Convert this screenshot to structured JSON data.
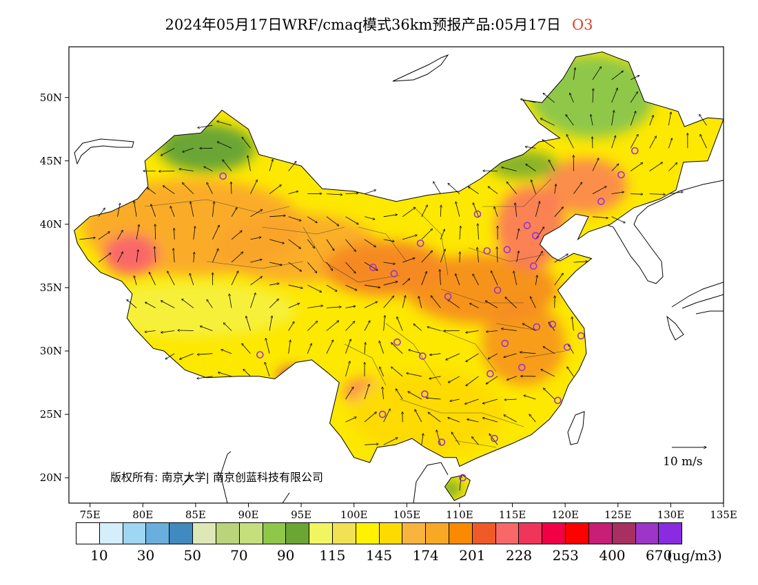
{
  "title": {
    "text": "2024年05月17日WRF/cmaq模式36km预报产品:05月17日",
    "species": "O3"
  },
  "axes": {
    "lat_labels": [
      "50N",
      "45N",
      "40N",
      "35N",
      "30N",
      "25N",
      "20N"
    ],
    "lat_values": [
      50,
      45,
      40,
      35,
      30,
      25,
      20
    ],
    "lon_labels": [
      "75E",
      "80E",
      "85E",
      "90E",
      "95E",
      "100E",
      "105E",
      "110E",
      "115E",
      "120E",
      "125E",
      "130E",
      "135E"
    ],
    "lon_values": [
      75,
      80,
      85,
      90,
      95,
      100,
      105,
      110,
      115,
      120,
      125,
      130,
      135
    ],
    "lon_range": [
      73,
      135
    ],
    "lat_range": [
      18,
      54
    ]
  },
  "copyright": "版权所有: 南京大学| 南京创蓝科技有限公司",
  "wind_legend": {
    "label": "10 m/s",
    "speed": 10
  },
  "colorbar": {
    "colors": [
      "#ffffff",
      "#d4eefb",
      "#9fd6f3",
      "#69aedc",
      "#4189c1",
      "#dde8b6",
      "#b9d47a",
      "#c4df7c",
      "#8fc749",
      "#6ba534",
      "#f2f562",
      "#f2e152",
      "#fff200",
      "#fdda00",
      "#f9b43e",
      "#f9a825",
      "#fb8a00",
      "#f05a28",
      "#f96868",
      "#f0355a",
      "#f20045",
      "#ff0000",
      "#c81e76",
      "#a83060",
      "#9d35c8",
      "#8a2be2"
    ],
    "labels": [
      "10",
      "30",
      "50",
      "70",
      "90",
      "115",
      "145",
      "174",
      "201",
      "228",
      "253",
      "400",
      "670"
    ],
    "unit": "(ug/m3)"
  },
  "stations": [
    [
      87.6,
      43.8
    ],
    [
      91.1,
      29.7
    ],
    [
      101.8,
      36.6
    ],
    [
      103.8,
      36.1
    ],
    [
      106.3,
      38.5
    ],
    [
      108.9,
      34.3
    ],
    [
      104.1,
      30.7
    ],
    [
      106.5,
      29.6
    ],
    [
      106.7,
      26.6
    ],
    [
      102.7,
      25.0
    ],
    [
      108.3,
      22.8
    ],
    [
      110.3,
      20.0
    ],
    [
      113.3,
      23.1
    ],
    [
      112.9,
      28.2
    ],
    [
      114.3,
      30.6
    ],
    [
      115.9,
      28.7
    ],
    [
      117.3,
      31.9
    ],
    [
      118.8,
      32.1
    ],
    [
      120.2,
      30.3
    ],
    [
      121.5,
      31.2
    ],
    [
      119.3,
      26.1
    ],
    [
      113.6,
      34.8
    ],
    [
      117.0,
      36.7
    ],
    [
      114.5,
      38.0
    ],
    [
      112.6,
      37.9
    ],
    [
      111.7,
      40.8
    ],
    [
      116.4,
      39.9
    ],
    [
      117.2,
      39.1
    ],
    [
      123.4,
      41.8
    ],
    [
      125.3,
      43.9
    ],
    [
      126.6,
      45.8
    ]
  ]
}
